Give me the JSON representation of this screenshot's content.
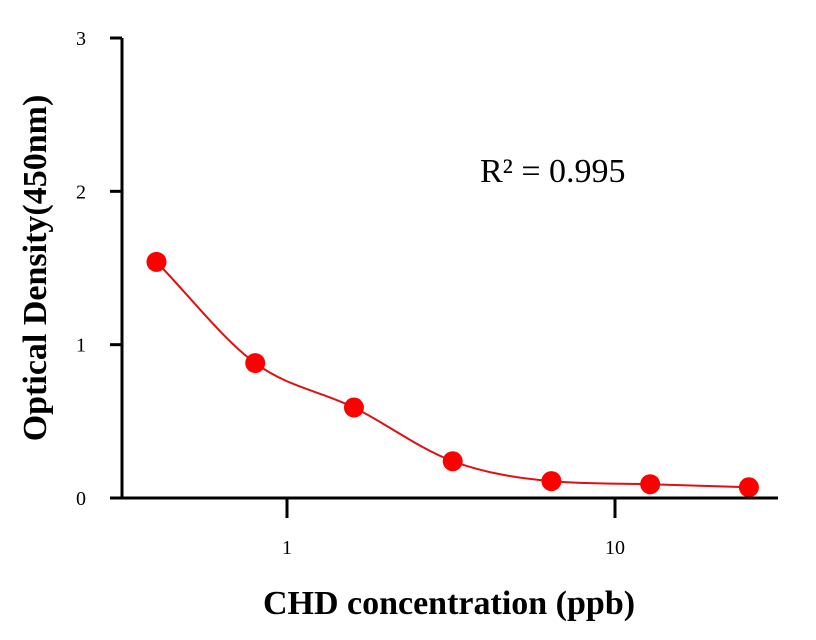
{
  "chart_data": {
    "type": "scatter",
    "title": "",
    "xlabel": "CHD concentration (ppb)",
    "ylabel": "Optical Density(450nm)",
    "xscale": "log",
    "ylim": [
      0,
      3
    ],
    "x_ticks": [
      1,
      10
    ],
    "x_tick_labels": [
      "1",
      "10"
    ],
    "y_ticks": [
      0,
      1,
      2,
      3
    ],
    "y_tick_labels": [
      "0",
      "1",
      "2",
      "3"
    ],
    "grid": false,
    "annotation": "R² = 0.995",
    "series": [
      {
        "x": [
          0.4,
          0.8,
          1.6,
          3.2,
          6.4,
          12.8,
          25.6
        ],
        "y": [
          1.54,
          0.88,
          0.59,
          0.24,
          0.11,
          0.09,
          0.07
        ],
        "marker_color": "#ff0000",
        "fit_line": true,
        "fit_color": "#dd1111"
      }
    ]
  }
}
